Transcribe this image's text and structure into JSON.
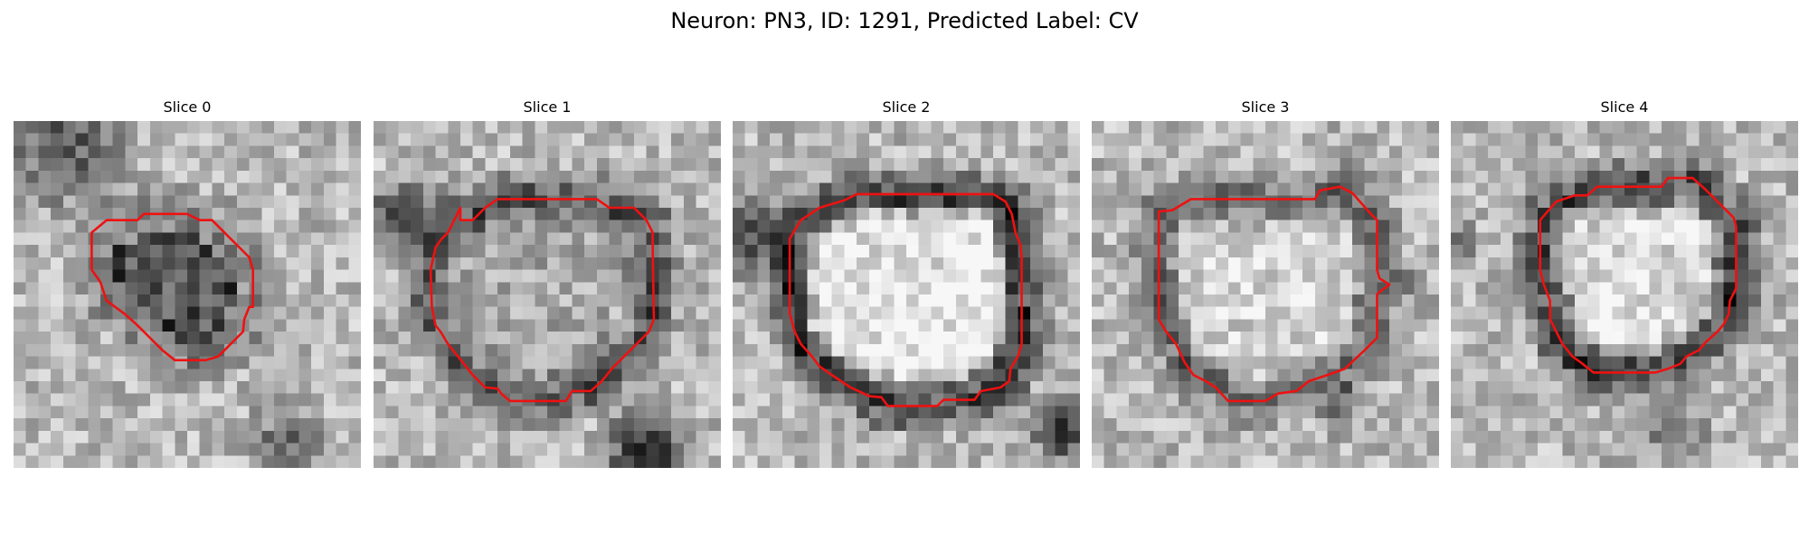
{
  "figure": {
    "title": "Neuron: PN3, ID: 1291, Predicted Label: CV"
  },
  "colors": {
    "contour": "#ee1111",
    "background": "#ffffff"
  },
  "panels": [
    {
      "title": "Slice 0",
      "grid_size": 28,
      "noise_seed": 11,
      "texture": "grayscale membrane micrograph, darker upper-left region and lower-right shadow",
      "contour": [
        [
          7.5,
          8
        ],
        [
          8,
          8
        ],
        [
          10,
          8
        ],
        [
          10.5,
          7.5
        ],
        [
          11,
          7.5
        ],
        [
          14,
          7.5
        ],
        [
          15,
          8
        ],
        [
          16,
          8
        ],
        [
          17,
          9
        ],
        [
          18,
          10
        ],
        [
          19,
          11
        ],
        [
          19.3,
          12
        ],
        [
          19.3,
          15
        ],
        [
          19,
          15
        ],
        [
          18.6,
          16
        ],
        [
          18.5,
          17
        ],
        [
          17.5,
          18
        ],
        [
          16.5,
          19
        ],
        [
          15.5,
          19.3
        ],
        [
          14,
          19.3
        ],
        [
          13,
          19.3
        ],
        [
          12,
          18.5
        ],
        [
          11,
          17.5
        ],
        [
          10,
          16.5
        ],
        [
          9,
          15.6
        ],
        [
          7.5,
          14.5
        ],
        [
          7,
          13
        ],
        [
          6.3,
          12
        ],
        [
          6.3,
          9
        ]
      ]
    },
    {
      "title": "Slice 1",
      "grid_size": 28,
      "noise_seed": 23,
      "texture": "grayscale micrograph with dark ring band around a lighter center",
      "contour": [
        [
          7,
          7
        ],
        [
          7,
          8
        ],
        [
          8,
          8
        ],
        [
          9,
          7
        ],
        [
          10,
          6.3
        ],
        [
          18,
          6.3
        ],
        [
          19,
          7
        ],
        [
          21,
          7
        ],
        [
          22,
          8
        ],
        [
          22.5,
          9
        ],
        [
          22.5,
          10
        ],
        [
          22.6,
          16
        ],
        [
          22.2,
          17
        ],
        [
          21.2,
          18
        ],
        [
          20.2,
          19
        ],
        [
          19.2,
          20
        ],
        [
          18.4,
          21
        ],
        [
          17.5,
          21.8
        ],
        [
          16,
          21.8
        ],
        [
          15.5,
          22.6
        ],
        [
          11,
          22.6
        ],
        [
          10.3,
          22
        ],
        [
          10,
          21.6
        ],
        [
          9,
          21.5
        ],
        [
          8,
          20.5
        ],
        [
          6,
          18
        ],
        [
          5.4,
          17
        ],
        [
          5,
          16.5
        ],
        [
          4.7,
          15
        ],
        [
          4.6,
          12
        ],
        [
          5,
          10.2
        ],
        [
          5.5,
          9.5
        ],
        [
          6,
          9
        ]
      ]
    },
    {
      "title": "Slice 2",
      "grid_size": 28,
      "noise_seed": 37,
      "texture": "grayscale micrograph with bright rounded center and dark surrounding ring",
      "contour": [
        [
          4.6,
          9.5
        ],
        [
          5.5,
          8
        ],
        [
          7,
          7
        ],
        [
          9,
          6.4
        ],
        [
          10,
          5.9
        ],
        [
          21,
          5.9
        ],
        [
          22,
          6.5
        ],
        [
          22.5,
          7.5
        ],
        [
          22.8,
          9
        ],
        [
          23.2,
          10
        ],
        [
          23.3,
          11
        ],
        [
          23.3,
          18
        ],
        [
          23,
          19
        ],
        [
          22.4,
          20
        ],
        [
          22.3,
          21
        ],
        [
          21.6,
          21.5
        ],
        [
          20,
          21.8
        ],
        [
          19.5,
          22.5
        ],
        [
          17,
          22.5
        ],
        [
          16.5,
          23
        ],
        [
          12.5,
          23
        ],
        [
          12,
          22.3
        ],
        [
          11,
          22.2
        ],
        [
          9.5,
          21.5
        ],
        [
          8,
          20.5
        ],
        [
          7,
          19.8
        ],
        [
          6.4,
          19
        ],
        [
          5.5,
          18
        ],
        [
          5,
          17
        ],
        [
          4.6,
          15.5
        ]
      ]
    },
    {
      "title": "Slice 3",
      "grid_size": 28,
      "noise_seed": 41,
      "texture": "grayscale micrograph with pale center, scattered darker pixels below",
      "contour": [
        [
          5.4,
          7.3
        ],
        [
          6.5,
          7.2
        ],
        [
          8,
          6.3
        ],
        [
          18,
          6.3
        ],
        [
          18.4,
          5.6
        ],
        [
          20,
          5.3
        ],
        [
          21,
          5.8
        ],
        [
          22.5,
          7.5
        ],
        [
          23,
          8
        ],
        [
          23,
          12
        ],
        [
          23.2,
          12.7
        ],
        [
          24,
          13.2
        ],
        [
          23.2,
          13.8
        ],
        [
          23,
          14
        ],
        [
          23,
          17.5
        ],
        [
          22,
          18.5
        ],
        [
          20.4,
          20
        ],
        [
          19,
          20.5
        ],
        [
          17.5,
          21
        ],
        [
          16.5,
          21.8
        ],
        [
          15,
          22
        ],
        [
          14,
          22.6
        ],
        [
          11,
          22.6
        ],
        [
          10,
          21.5
        ],
        [
          9.2,
          21
        ],
        [
          8.2,
          20.5
        ],
        [
          7.5,
          19.5
        ],
        [
          6.8,
          18
        ],
        [
          6,
          17
        ],
        [
          5.4,
          16
        ]
      ]
    },
    {
      "title": "Slice 4",
      "grid_size": 28,
      "noise_seed": 53,
      "texture": "grayscale micrograph with light center, dark ring on left and bottom-right",
      "contour": [
        [
          7.2,
          8
        ],
        [
          8.5,
          6.5
        ],
        [
          10,
          6
        ],
        [
          11,
          6
        ],
        [
          11.8,
          5.3
        ],
        [
          17,
          5.3
        ],
        [
          17.5,
          4.6
        ],
        [
          19.5,
          4.6
        ],
        [
          20.5,
          5.5
        ],
        [
          21.5,
          6.5
        ],
        [
          22.8,
          7.8
        ],
        [
          23,
          8.5
        ],
        [
          23,
          13.5
        ],
        [
          22.5,
          14.5
        ],
        [
          22.4,
          15.6
        ],
        [
          22,
          16.4
        ],
        [
          21.5,
          17
        ],
        [
          20.6,
          17.8
        ],
        [
          20,
          18.5
        ],
        [
          19,
          19
        ],
        [
          18.5,
          19.6
        ],
        [
          17.5,
          20
        ],
        [
          16.5,
          20.3
        ],
        [
          11.5,
          20.3
        ],
        [
          10.5,
          19.5
        ],
        [
          9.8,
          19
        ],
        [
          9,
          18
        ],
        [
          8.5,
          17
        ],
        [
          8,
          16
        ],
        [
          8,
          14.5
        ],
        [
          7.5,
          13.2
        ],
        [
          7.2,
          12
        ]
      ]
    }
  ]
}
